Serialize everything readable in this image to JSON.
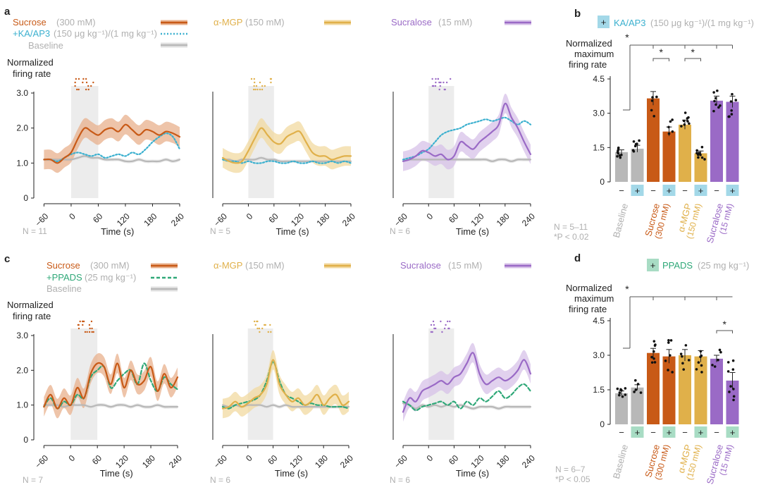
{
  "colors": {
    "sucrose": "#c85a17",
    "sucrose_fill": "#e8b08c",
    "mgp": "#e0b04a",
    "mgp_fill": "#f2d9a0",
    "sucralose": "#9a6ac6",
    "sucralose_fill": "#d7c1e8",
    "baseline": "#b8b8b8",
    "baseline_fill": "#e2e2e2",
    "kaap3": "#3bb0cf",
    "kaap3_box": "#a3d8e8",
    "ppads": "#2fa878",
    "ppads_box": "#a8dcc4",
    "stim": "#ececec",
    "axis": "#222222",
    "muted": "#b0b0b0"
  },
  "panels": {
    "a": "a",
    "b": "b",
    "c": "c",
    "d": "d"
  },
  "legend_top": {
    "sucrose": "Sucrose",
    "sucrose_conc": "(300 mM)",
    "mgp": "α-MGP",
    "mgp_conc": "(150 mM)",
    "sucralose": "Sucralose",
    "sucralose_conc": "(15 mM)",
    "kaap3": "+KA/AP3",
    "kaap3_dose": "(150 μg kg⁻¹)/(1 mg kg⁻¹)",
    "baseline": "Baseline"
  },
  "legend_bottom": {
    "sucrose": "Sucrose",
    "sucrose_conc": "(300 mM)",
    "mgp": "α-MGP",
    "mgp_conc": "(150 mM)",
    "sucralose": "Sucralose",
    "sucralose_conc": "(15 mM)",
    "ppads": "+PPADS",
    "ppads_dose": "(25 mg kg⁻¹)",
    "baseline": "Baseline"
  },
  "b_header": {
    "plus": "+",
    "label": "KA/AP3",
    "dose": "(150 μg kg⁻¹)/(1 mg kg⁻¹)"
  },
  "d_header": {
    "plus": "+",
    "label": "PPADS",
    "dose": "(25 mg kg⁻¹)"
  },
  "time_axis": {
    "ylabel_line1": "Normalized",
    "ylabel_line2": "firing rate",
    "xlabel": "Time (s)",
    "xticks": [
      "−60",
      "0",
      "60",
      "120",
      "180",
      "240"
    ],
    "yticks": [
      "0",
      "1.0",
      "2.0",
      "3.0"
    ]
  },
  "bar_axis": {
    "ylabel_line1": "Normalized",
    "ylabel_line2": "maximum",
    "ylabel_line3": "firing rate",
    "yticks": [
      "0",
      "1.5",
      "3.0",
      "4.5"
    ],
    "minus": "−",
    "plus": "+",
    "xcats": [
      {
        "name": "Baseline",
        "conc": ""
      },
      {
        "name": "Sucrose",
        "conc": "(300 mM)"
      },
      {
        "name": "α-MGP",
        "conc": "(150 mM)"
      },
      {
        "name": "Sucralose",
        "conc": "(15 mM)"
      }
    ]
  },
  "n_labels": {
    "a1": "N = 11",
    "a2": "N = 5",
    "a3": "N = 6",
    "c1": "N = 7",
    "c2": "N = 6",
    "c3": "N = 6",
    "b": "N = 5–11",
    "b_p": "*P < 0.02",
    "d": "N = 6–7",
    "d_p": "*P < 0.05"
  },
  "star": "*",
  "chart_data": [
    {
      "type": "line",
      "panel": "a",
      "title": "Sucrose (300 mM)",
      "xlabel": "Time (s)",
      "ylabel": "Normalized firing rate",
      "xlim": [
        -70,
        240
      ],
      "ylim": [
        0,
        3.0
      ],
      "stimulus": [
        0,
        60
      ],
      "x": [
        -60,
        -45,
        -30,
        -15,
        0,
        15,
        30,
        45,
        60,
        75,
        90,
        105,
        120,
        135,
        150,
        165,
        180,
        195,
        210,
        225,
        240
      ],
      "series": [
        {
          "name": "Sucrose",
          "values": [
            1.1,
            1.1,
            1.0,
            1.15,
            1.3,
            1.7,
            2.0,
            1.9,
            1.8,
            1.95,
            2.0,
            1.9,
            2.1,
            1.95,
            1.8,
            1.95,
            1.9,
            1.8,
            1.9,
            1.85,
            1.75
          ]
        },
        {
          "name": "+KA/AP3",
          "values": [
            1.1,
            1.1,
            1.05,
            1.15,
            1.25,
            1.3,
            1.25,
            1.2,
            1.25,
            1.15,
            1.2,
            1.25,
            1.2,
            1.3,
            1.25,
            1.4,
            1.6,
            1.75,
            1.85,
            1.75,
            1.4
          ]
        },
        {
          "name": "Baseline",
          "values": [
            1.1,
            1.1,
            1.1,
            1.1,
            1.1,
            1.15,
            1.2,
            1.15,
            1.15,
            1.1,
            1.1,
            1.1,
            1.05,
            1.05,
            1.1,
            1.05,
            1.05,
            1.05,
            1.1,
            1.05,
            1.1
          ]
        }
      ]
    },
    {
      "type": "line",
      "panel": "a",
      "title": "α-MGP (150 mM)",
      "xlabel": "Time (s)",
      "xlim": [
        -70,
        240
      ],
      "ylim": [
        0,
        3.0
      ],
      "stimulus": [
        0,
        60
      ],
      "x": [
        -60,
        -45,
        -30,
        -15,
        0,
        15,
        30,
        45,
        60,
        75,
        90,
        105,
        120,
        135,
        150,
        165,
        180,
        195,
        210,
        225,
        240
      ],
      "series": [
        {
          "name": "α-MGP",
          "values": [
            1.15,
            1.05,
            1.0,
            1.05,
            1.35,
            1.7,
            2.0,
            1.8,
            1.6,
            1.55,
            1.75,
            1.85,
            1.9,
            1.6,
            1.3,
            1.2,
            1.2,
            1.1,
            1.15,
            1.2,
            1.2
          ]
        },
        {
          "name": "+KA/AP3",
          "values": [
            1.1,
            1.05,
            1.05,
            1.0,
            1.05,
            1.0,
            1.0,
            1.05,
            1.05,
            1.0,
            1.0,
            1.05,
            1.0,
            1.0,
            1.05,
            1.0,
            1.0,
            1.05,
            1.0,
            1.05,
            1.0
          ]
        },
        {
          "name": "Baseline",
          "values": [
            1.1,
            1.1,
            1.05,
            1.1,
            1.1,
            1.1,
            1.15,
            1.1,
            1.1,
            1.05,
            1.05,
            1.05,
            1.05,
            1.05,
            1.05,
            1.05,
            1.05,
            1.05,
            1.05,
            1.05,
            1.05
          ]
        }
      ]
    },
    {
      "type": "line",
      "panel": "a",
      "title": "Sucralose (15 mM)",
      "xlabel": "Time (s)",
      "xlim": [
        -70,
        240
      ],
      "ylim": [
        0,
        3.0
      ],
      "stimulus": [
        0,
        60
      ],
      "x": [
        -60,
        -45,
        -30,
        -15,
        0,
        15,
        30,
        45,
        60,
        75,
        90,
        105,
        120,
        135,
        150,
        165,
        180,
        195,
        210,
        225,
        240
      ],
      "series": [
        {
          "name": "Sucralose",
          "values": [
            1.05,
            1.1,
            1.2,
            1.35,
            1.3,
            1.2,
            1.25,
            1.1,
            1.2,
            1.6,
            1.5,
            1.4,
            1.6,
            1.75,
            1.9,
            2.1,
            2.7,
            2.3,
            2.0,
            1.6,
            1.25
          ]
        },
        {
          "name": "+KA/AP3",
          "values": [
            1.1,
            1.15,
            1.2,
            1.3,
            1.4,
            1.6,
            1.8,
            1.9,
            1.95,
            2.0,
            2.1,
            2.15,
            2.2,
            2.25,
            2.2,
            2.25,
            2.3,
            2.2,
            2.1,
            2.2,
            2.1
          ]
        },
        {
          "name": "Baseline",
          "values": [
            1.1,
            1.1,
            1.1,
            1.1,
            1.1,
            1.1,
            1.1,
            1.1,
            1.1,
            1.1,
            1.1,
            1.1,
            1.1,
            1.1,
            1.05,
            1.1,
            1.1,
            1.05,
            1.1,
            1.1,
            1.1
          ]
        }
      ]
    },
    {
      "type": "bar",
      "panel": "b",
      "title": "+ KA/AP3 (150 μg kg⁻¹)/(1 mg kg⁻¹)",
      "ylabel": "Normalized maximum firing rate",
      "ylim": [
        0,
        4.5
      ],
      "categories": [
        "Baseline −",
        "Baseline +",
        "Sucrose −",
        "Sucrose +",
        "α-MGP −",
        "α-MGP +",
        "Sucralose −",
        "Sucralose +"
      ],
      "values": [
        1.3,
        1.45,
        3.65,
        2.2,
        2.5,
        1.25,
        3.55,
        3.5
      ],
      "errors": [
        0.1,
        0.15,
        0.3,
        0.2,
        0.2,
        0.1,
        0.2,
        0.25
      ],
      "significance": [
        "Baseline vs all stimuli *",
        "Sucrose − vs + *",
        "α-MGP − vs + *"
      ]
    },
    {
      "type": "line",
      "panel": "c",
      "title": "Sucrose (300 mM)",
      "xlabel": "Time (s)",
      "ylabel": "Normalized firing rate",
      "xlim": [
        -70,
        240
      ],
      "ylim": [
        0,
        3.0
      ],
      "stimulus": [
        0,
        60
      ],
      "x": [
        -60,
        -45,
        -30,
        -15,
        0,
        15,
        30,
        45,
        60,
        75,
        90,
        105,
        120,
        135,
        150,
        165,
        180,
        195,
        210,
        225,
        240
      ],
      "series": [
        {
          "name": "Sucrose",
          "values": [
            0.95,
            1.3,
            0.9,
            1.2,
            1.0,
            1.5,
            1.2,
            1.9,
            2.2,
            2.1,
            1.6,
            2.2,
            1.5,
            2.0,
            1.6,
            1.7,
            2.1,
            1.4,
            1.9,
            1.5,
            1.8
          ]
        },
        {
          "name": "+PPADS",
          "values": [
            0.95,
            1.2,
            0.9,
            1.1,
            1.0,
            1.3,
            1.2,
            1.8,
            2.0,
            2.1,
            1.5,
            1.7,
            1.9,
            2.0,
            1.6,
            2.2,
            1.7,
            1.4,
            1.8,
            1.6,
            1.45
          ]
        },
        {
          "name": "Baseline",
          "values": [
            1.0,
            1.0,
            1.0,
            0.95,
            1.0,
            1.0,
            1.0,
            0.95,
            1.0,
            1.0,
            0.95,
            1.0,
            1.0,
            0.95,
            1.0,
            0.95,
            0.95,
            1.0,
            0.95,
            0.95,
            0.95
          ]
        }
      ]
    },
    {
      "type": "line",
      "panel": "c",
      "title": "α-MGP (150 mM)",
      "xlabel": "Time (s)",
      "xlim": [
        -70,
        240
      ],
      "ylim": [
        0,
        3.0
      ],
      "stimulus": [
        0,
        60
      ],
      "x": [
        -60,
        -45,
        -30,
        -15,
        0,
        15,
        30,
        45,
        60,
        75,
        90,
        105,
        120,
        135,
        150,
        165,
        180,
        195,
        210,
        225,
        240
      ],
      "series": [
        {
          "name": "α-MGP",
          "values": [
            0.9,
            0.95,
            1.1,
            0.95,
            1.05,
            1.2,
            1.3,
            1.6,
            2.3,
            1.6,
            1.3,
            1.1,
            1.2,
            1.0,
            1.1,
            1.3,
            1.0,
            1.2,
            1.3,
            1.0,
            1.1
          ]
        },
        {
          "name": "+PPADS",
          "values": [
            0.95,
            0.9,
            1.0,
            1.05,
            1.1,
            1.15,
            1.3,
            1.7,
            2.25,
            1.7,
            1.3,
            1.2,
            1.1,
            1.0,
            1.05,
            1.0,
            1.0,
            0.95,
            0.95,
            0.95,
            0.9
          ]
        },
        {
          "name": "Baseline",
          "values": [
            1.0,
            0.95,
            1.0,
            0.95,
            1.0,
            1.0,
            1.0,
            0.95,
            1.0,
            0.95,
            1.0,
            0.95,
            0.95,
            0.95,
            0.95,
            0.95,
            0.95,
            0.95,
            0.95,
            0.95,
            0.95
          ]
        }
      ]
    },
    {
      "type": "line",
      "panel": "c",
      "title": "Sucralose (15 mM)",
      "xlabel": "Time (s)",
      "xlim": [
        -70,
        240
      ],
      "ylim": [
        0,
        3.0
      ],
      "stimulus": [
        0,
        60
      ],
      "x": [
        -60,
        -45,
        -30,
        -15,
        0,
        15,
        30,
        45,
        60,
        75,
        90,
        105,
        120,
        135,
        150,
        165,
        180,
        195,
        210,
        225,
        240
      ],
      "series": [
        {
          "name": "Sucralose",
          "values": [
            0.8,
            1.2,
            1.1,
            1.4,
            1.5,
            1.6,
            1.7,
            1.6,
            1.8,
            1.9,
            2.2,
            2.5,
            1.9,
            1.6,
            1.7,
            1.8,
            1.7,
            1.8,
            2.0,
            2.3,
            1.9
          ]
        },
        {
          "name": "+PPADS",
          "values": [
            1.1,
            1.0,
            0.85,
            0.95,
            1.0,
            1.05,
            1.1,
            1.0,
            1.1,
            0.9,
            1.1,
            1.0,
            1.2,
            1.1,
            1.25,
            1.4,
            1.2,
            1.3,
            1.5,
            1.6,
            1.4
          ]
        },
        {
          "name": "Baseline",
          "values": [
            1.05,
            1.0,
            0.9,
            1.0,
            0.95,
            1.0,
            0.95,
            1.0,
            0.95,
            1.0,
            0.95,
            0.9,
            0.95,
            0.95,
            0.95,
            0.9,
            0.95,
            0.95,
            0.95,
            0.95,
            0.95
          ]
        }
      ]
    },
    {
      "type": "bar",
      "panel": "d",
      "title": "+ PPADS (25 mg kg⁻¹)",
      "ylabel": "Normalized maximum firing rate",
      "ylim": [
        0,
        4.5
      ],
      "categories": [
        "Baseline −",
        "Baseline +",
        "Sucrose −",
        "Sucrose +",
        "α-MGP −",
        "α-MGP +",
        "Sucralose −",
        "Sucralose +"
      ],
      "values": [
        1.35,
        1.6,
        3.1,
        2.95,
        3.0,
        2.95,
        2.85,
        1.9
      ],
      "errors": [
        0.1,
        0.12,
        0.2,
        0.3,
        0.25,
        0.25,
        0.15,
        0.35
      ],
      "significance": [
        "Baseline vs all stimuli *",
        "Sucralose − vs + *"
      ]
    }
  ]
}
